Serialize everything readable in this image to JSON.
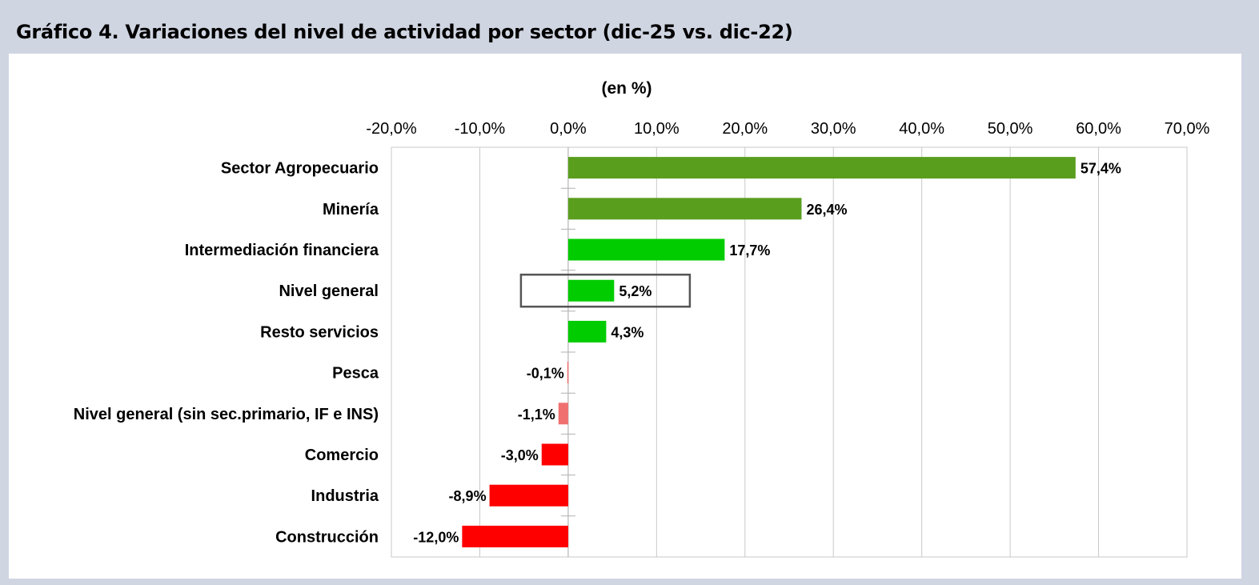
{
  "header": {
    "title": "Gráfico 4. Variaciones del nivel de actividad por sector (dic-25 vs. dic-22)"
  },
  "chart_data": {
    "type": "bar",
    "orientation": "horizontal",
    "subtitle": "(en %)",
    "xlim": [
      -20,
      70
    ],
    "x_ticks": [
      -20,
      -10,
      0,
      10,
      20,
      30,
      40,
      50,
      60,
      70
    ],
    "x_tick_labels": [
      "-20,0%",
      "-10,0%",
      "0,0%",
      "10,0%",
      "20,0%",
      "30,0%",
      "40,0%",
      "50,0%",
      "60,0%",
      "70,0%"
    ],
    "grid": true,
    "highlighted_category": "Nivel general",
    "categories": [
      "Sector Agropecuario",
      "Minería",
      "Intermediación financiera",
      "Nivel general",
      "Resto servicios",
      "Pesca",
      "Nivel general (sin sec.primario, IF e INS)",
      "Comercio",
      "Industria",
      "Construcción"
    ],
    "values": [
      57.4,
      26.4,
      17.7,
      5.2,
      4.3,
      -0.1,
      -1.1,
      -3.0,
      -8.9,
      -12.0
    ],
    "data_labels": [
      "57,4%",
      "26,4%",
      "17,7%",
      "5,2%",
      "4,3%",
      "-0,1%",
      "-1,1%",
      "-3,0%",
      "-8,9%",
      "-12,0%"
    ],
    "bar_colors": [
      "#5a9e1e",
      "#5a9e1e",
      "#00cc00",
      "#00cc00",
      "#00cc00",
      "#f07070",
      "#f07070",
      "#ff0000",
      "#ff0000",
      "#ff0000"
    ]
  }
}
